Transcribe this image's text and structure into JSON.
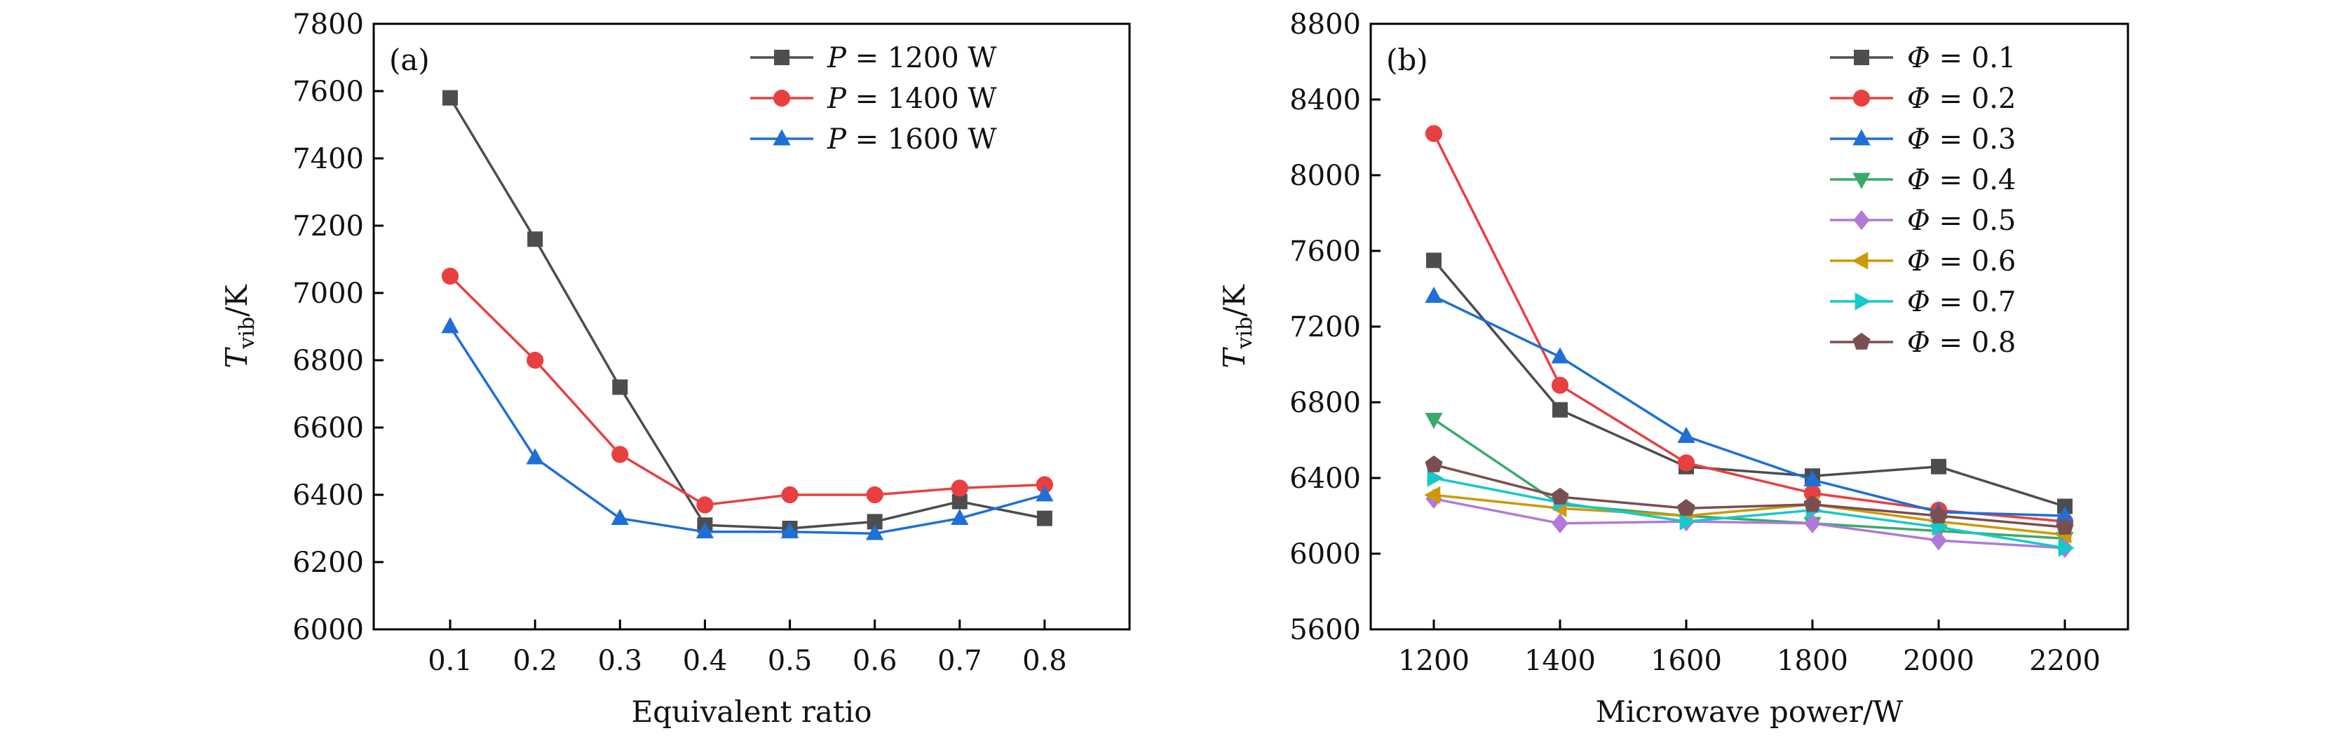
{
  "chart_data": [
    {
      "type": "line",
      "panel_label": "(a)",
      "title": "",
      "xlabel": "Equivalent ratio",
      "ylabel_main": "T",
      "ylabel_sub": "vib",
      "ylabel_unit": "/K",
      "x": [
        0.1,
        0.2,
        0.3,
        0.4,
        0.5,
        0.6,
        0.7,
        0.8
      ],
      "x_tick_labels": [
        "0.1",
        "0.2",
        "0.3",
        "0.4",
        "0.5",
        "0.6",
        "0.7",
        "0.8"
      ],
      "xlim": [
        0.01,
        0.9
      ],
      "ylim": [
        6000,
        7800
      ],
      "y_ticks": [
        6000,
        6200,
        6400,
        6600,
        6800,
        7000,
        7200,
        7400,
        7600,
        7800
      ],
      "y_tick_labels": [
        "6000",
        "6200",
        "6400",
        "6600",
        "6800",
        "7000",
        "7200",
        "7400",
        "7600",
        "7800"
      ],
      "grid": false,
      "legend_position": "top-right",
      "series": [
        {
          "name": "P = 1200 W",
          "var": "P",
          "value_label": "1200 W",
          "color": "#4d4d4d",
          "marker": "square",
          "values": [
            7580,
            7160,
            6720,
            6310,
            6300,
            6320,
            6380,
            6330
          ]
        },
        {
          "name": "P = 1400 W",
          "var": "P",
          "value_label": "1400 W",
          "color": "#e84040",
          "marker": "circle",
          "values": [
            7050,
            6800,
            6520,
            6370,
            6400,
            6400,
            6420,
            6430
          ]
        },
        {
          "name": "P = 1600 W",
          "var": "P",
          "value_label": "1600 W",
          "color": "#1f6fd6",
          "marker": "triangle-up",
          "values": [
            6900,
            6510,
            6330,
            6290,
            6290,
            6285,
            6330,
            6400
          ]
        }
      ]
    },
    {
      "type": "line",
      "panel_label": "(b)",
      "title": "",
      "xlabel": "Microwave power/W",
      "ylabel_main": "T",
      "ylabel_sub": "vib",
      "ylabel_unit": "/K",
      "x": [
        1200,
        1400,
        1600,
        1800,
        2000,
        2200
      ],
      "x_tick_labels": [
        "1200",
        "1400",
        "1600",
        "1800",
        "2000",
        "2200"
      ],
      "xlim": [
        1100,
        2300
      ],
      "ylim": [
        5600,
        8800
      ],
      "y_ticks": [
        5600,
        6000,
        6400,
        6800,
        7200,
        7600,
        8000,
        8400,
        8800
      ],
      "y_tick_labels": [
        "5600",
        "6000",
        "6400",
        "6800",
        "7200",
        "7600",
        "8000",
        "8400",
        "8800"
      ],
      "grid": false,
      "legend_position": "top-right",
      "series": [
        {
          "name": "Φ = 0.1",
          "var": "Φ",
          "value_label": "0.1",
          "color": "#4d4d4d",
          "marker": "square",
          "values": [
            7550,
            6760,
            6460,
            6410,
            6460,
            6250
          ]
        },
        {
          "name": "Φ = 0.2",
          "var": "Φ",
          "value_label": "0.2",
          "color": "#e84040",
          "marker": "circle",
          "values": [
            8220,
            6890,
            6480,
            6320,
            6230,
            6170
          ]
        },
        {
          "name": "Φ = 0.3",
          "var": "Φ",
          "value_label": "0.3",
          "color": "#1f6fd6",
          "marker": "triangle-up",
          "values": [
            7360,
            7040,
            6620,
            6390,
            6220,
            6200
          ]
        },
        {
          "name": "Φ = 0.4",
          "var": "Φ",
          "value_label": "0.4",
          "color": "#3aaa6a",
          "marker": "triangle-down",
          "values": [
            6710,
            6260,
            6200,
            6160,
            6120,
            6080
          ]
        },
        {
          "name": "Φ = 0.5",
          "var": "Φ",
          "value_label": "0.5",
          "color": "#b07ad8",
          "marker": "diamond",
          "values": [
            6290,
            6160,
            6170,
            6160,
            6070,
            6030
          ]
        },
        {
          "name": "Φ = 0.6",
          "var": "Φ",
          "value_label": "0.6",
          "color": "#cc9a06",
          "marker": "triangle-left",
          "values": [
            6310,
            6240,
            6200,
            6260,
            6170,
            6100
          ]
        },
        {
          "name": "Φ = 0.7",
          "var": "Φ",
          "value_label": "0.7",
          "color": "#17c8cc",
          "marker": "triangle-right",
          "values": [
            6400,
            6270,
            6170,
            6230,
            6140,
            6030
          ]
        },
        {
          "name": "Φ = 0.8",
          "var": "Φ",
          "value_label": "0.8",
          "color": "#7a4f4f",
          "marker": "pentagon",
          "values": [
            6470,
            6300,
            6240,
            6260,
            6200,
            6140
          ]
        }
      ]
    }
  ]
}
